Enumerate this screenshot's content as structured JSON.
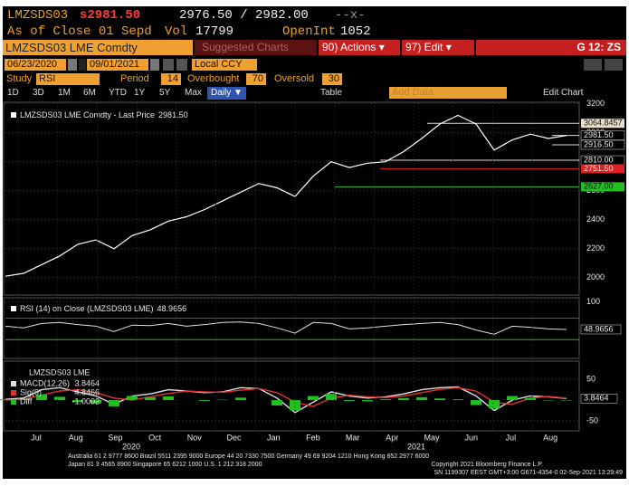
{
  "header": {
    "ticker": "LMZSDS03",
    "last": "s2981.50",
    "bid_ask": "2976.50 / 2982.00",
    "change": "--x-",
    "as_of": "As of Close 01 Sepd",
    "vol_label": "Vol",
    "vol": "17799",
    "oi_label": "OpenInt",
    "oi": "1052"
  },
  "titlebar": {
    "security": "LMZSDS03 LME Comdty",
    "suggested": "Suggested Charts",
    "actions": "90) Actions ▾",
    "edit": "97) Edit ▾",
    "page": "G 12: ZS"
  },
  "controls": {
    "start": "06/23/2020",
    "end": "09/01/2021",
    "currency": "Local CCY",
    "study_label": "Study",
    "study": "RSI",
    "period_label": "Period",
    "period": 14,
    "overbought_label": "Overbought",
    "overbought": 70,
    "oversold_label": "Oversold",
    "oversold": 30
  },
  "toolbar": {
    "ranges": [
      "1D",
      "3D",
      "1M",
      "6M",
      "YTD",
      "1Y",
      "5Y",
      "Max"
    ],
    "frequency": "Daily ▼",
    "table": "Table",
    "add_data": "Add Data",
    "edit_chart": "Edit Chart"
  },
  "chart_data": [
    {
      "type": "line",
      "title": "LMZSDS03 LME Comdty - Last Price",
      "color": "#ffffff",
      "values": [
        2010,
        2030,
        2090,
        2150,
        2230,
        2260,
        2200,
        2290,
        2330,
        2390,
        2420,
        2470,
        2530,
        2590,
        2650,
        2620,
        2560,
        2700,
        2800,
        2760,
        2790,
        2800,
        2870,
        2960,
        3060,
        3120,
        3060,
        2880,
        2950,
        2990,
        2960,
        2981.5
      ],
      "ylim": [
        1880,
        3210
      ],
      "yticks": [
        2000,
        2200,
        2400,
        2600,
        2800,
        3000,
        3200
      ],
      "grid": true,
      "levels": [
        {
          "value": 3064.8457,
          "label": "3064.8457",
          "color": "#e8e0c8"
        },
        {
          "value": 2981.5,
          "label": "2981.50",
          "color": "#000000"
        },
        {
          "value": 2916.5,
          "label": "2916.50",
          "color": "#000000"
        },
        {
          "value": 2810,
          "label": "2810.00",
          "color": "#000000"
        },
        {
          "value": 2751.5,
          "label": "2751.50",
          "color": "#e02020"
        },
        {
          "value": 2627,
          "label": "2627.00",
          "color": "#20c020"
        }
      ]
    },
    {
      "type": "line",
      "title": "RSI (14) on Close (LMZSDS03 LME)",
      "color": "#e0e0e0",
      "values": [
        55,
        52,
        60,
        62,
        58,
        55,
        45,
        57,
        56,
        60,
        55,
        58,
        62,
        63,
        60,
        52,
        42,
        62,
        60,
        50,
        52,
        55,
        58,
        60,
        62,
        58,
        48,
        40,
        55,
        53,
        50,
        48.9656
      ],
      "ylim": [
        0,
        108
      ],
      "yticks": [
        100
      ]
    },
    {
      "type": "macd",
      "title": "LMZSDS03 LME",
      "ylim": [
        -74,
        94
      ],
      "yticks": [
        -50,
        50
      ],
      "series": [
        {
          "name": "MACD(12,26)",
          "color": "#e0e0e0",
          "values": [
            2,
            5,
            25,
            30,
            20,
            10,
            -10,
            10,
            15,
            25,
            22,
            18,
            20,
            30,
            28,
            5,
            -30,
            -5,
            20,
            10,
            5,
            8,
            15,
            25,
            30,
            32,
            10,
            -25,
            0,
            10,
            8,
            3.8464
          ]
        },
        {
          "name": "Sig(9)",
          "color": "#e03030",
          "values": [
            0,
            2,
            12,
            22,
            25,
            18,
            5,
            0,
            8,
            16,
            22,
            20,
            19,
            24,
            28,
            18,
            -5,
            -15,
            5,
            12,
            8,
            6,
            10,
            18,
            26,
            30,
            22,
            -5,
            -10,
            5,
            9,
            4.8466
          ]
        },
        {
          "name": "Diff",
          "color": "#20c020",
          "values": [
            2,
            3,
            13,
            8,
            -5,
            -8,
            -15,
            10,
            7,
            9,
            0,
            -2,
            1,
            6,
            0,
            -13,
            -25,
            10,
            15,
            -2,
            -3,
            2,
            5,
            7,
            4,
            2,
            -12,
            -20,
            10,
            5,
            -1,
            -1.0002
          ]
        }
      ]
    }
  ],
  "x_axis": {
    "months": [
      "Jul",
      "Aug",
      "Sep",
      "Oct",
      "Nov",
      "Dec",
      "Jan",
      "Feb",
      "Mar",
      "Apr",
      "May",
      "Jun",
      "Jul",
      "Aug"
    ],
    "years": [
      "2020",
      "2021"
    ]
  },
  "footer": {
    "line1": "Australia 61 2 9777 8600 Brazil 5511 2395 9000 Europe 44 20 7330 7500 Germany 49 69 9204 1210 Hong Kong 852 2977 6000",
    "line2": "Japan 81 3 4565 8900       Singapore 65 6212 1000       U.S. 1 212 318 2000",
    "copyright": "Copyright 2021 Bloomberg Finance L.P.",
    "session": "SN 1199307 EEST GMT+3:00 G671-4354-0 02-Sep-2021 13:29:49"
  }
}
